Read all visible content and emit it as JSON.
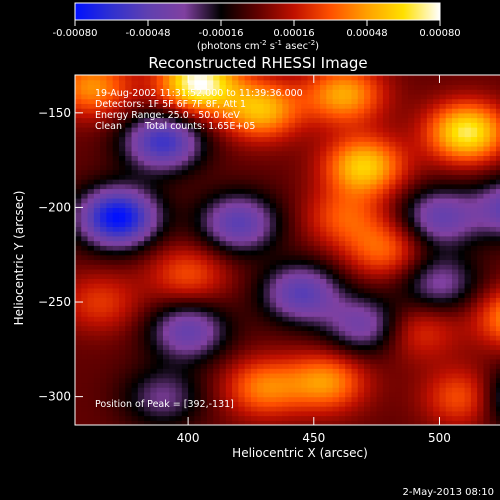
{
  "chart_data": {
    "type": "heatmap",
    "title": "Reconstructed RHESSI Image",
    "xlabel": "Heliocentric X (arcsec)",
    "ylabel": "Heliocentric Y (arcsec)",
    "xlim": [
      355,
      540
    ],
    "ylim": [
      -315,
      -130
    ],
    "x_ticks": [
      400,
      450,
      500
    ],
    "y_ticks": [
      -150,
      -200,
      -250,
      -300
    ],
    "colorbar": {
      "ticks": [
        "-0.00080",
        "-0.00048",
        "-0.00016",
        "0.00016",
        "0.00048",
        "0.00080"
      ],
      "range": [
        -0.0008,
        0.0008
      ],
      "unit_main": "(photons cm",
      "unit_sup1": "-2",
      "unit_mid1": " s",
      "unit_sup2": "-1",
      "unit_mid2": " asec",
      "unit_sup3": "-2",
      "unit_end": ")",
      "colors": [
        "#0010ff",
        "#3030d0",
        "#6040b0",
        "#8040a0",
        "#000000",
        "#600000",
        "#c01000",
        "#ff5000",
        "#ffa000",
        "#ffe000",
        "#ffffff"
      ]
    },
    "annotations": {
      "line1": "19-Aug-2002 11:31:52.000 to 11:39:36.000",
      "line2": "Detectors: 1F 5F 6F 7F 8F, Att 1",
      "line3": "Energy Range: 25.0 - 50.0 keV",
      "line4a": "Clean",
      "line4b": "Total counts: 1.65E+05",
      "peak": "Position of Peak = [392,-131]"
    },
    "sources": [
      {
        "x": 404,
        "y": -134,
        "value": 0.0008
      },
      {
        "x": 429,
        "y": -148,
        "value": 0.00055
      },
      {
        "x": 470,
        "y": -178,
        "value": 0.0006
      },
      {
        "x": 511,
        "y": -160,
        "value": 0.0007
      },
      {
        "x": 462,
        "y": -140,
        "value": 0.0005
      },
      {
        "x": 362,
        "y": -136,
        "value": 0.00045
      },
      {
        "x": 455,
        "y": -292,
        "value": 0.00045
      },
      {
        "x": 430,
        "y": -295,
        "value": 0.0004
      },
      {
        "x": 530,
        "y": -258,
        "value": 0.00045
      },
      {
        "x": 478,
        "y": -222,
        "value": 0.00035
      },
      {
        "x": 462,
        "y": -205,
        "value": 0.0003
      },
      {
        "x": 510,
        "y": -300,
        "value": 0.00035
      },
      {
        "x": 400,
        "y": -235,
        "value": 0.0003
      },
      {
        "x": 365,
        "y": -250,
        "value": 0.00025
      },
      {
        "x": 492,
        "y": -265,
        "value": 0.00025
      },
      {
        "x": 372,
        "y": -205,
        "value": -0.0008
      },
      {
        "x": 390,
        "y": -165,
        "value": -0.0006
      },
      {
        "x": 420,
        "y": -208,
        "value": -0.0005
      },
      {
        "x": 400,
        "y": -265,
        "value": -0.00045
      },
      {
        "x": 445,
        "y": -245,
        "value": -0.0005
      },
      {
        "x": 500,
        "y": -205,
        "value": -0.00045
      },
      {
        "x": 530,
        "y": -200,
        "value": -0.0005
      },
      {
        "x": 530,
        "y": -300,
        "value": -0.0004
      },
      {
        "x": 470,
        "y": -262,
        "value": -0.0004
      },
      {
        "x": 390,
        "y": -300,
        "value": -0.0003
      },
      {
        "x": 500,
        "y": -240,
        "value": -0.00035
      }
    ]
  },
  "footer": {
    "timestamp": "2-May-2013 08:10"
  }
}
